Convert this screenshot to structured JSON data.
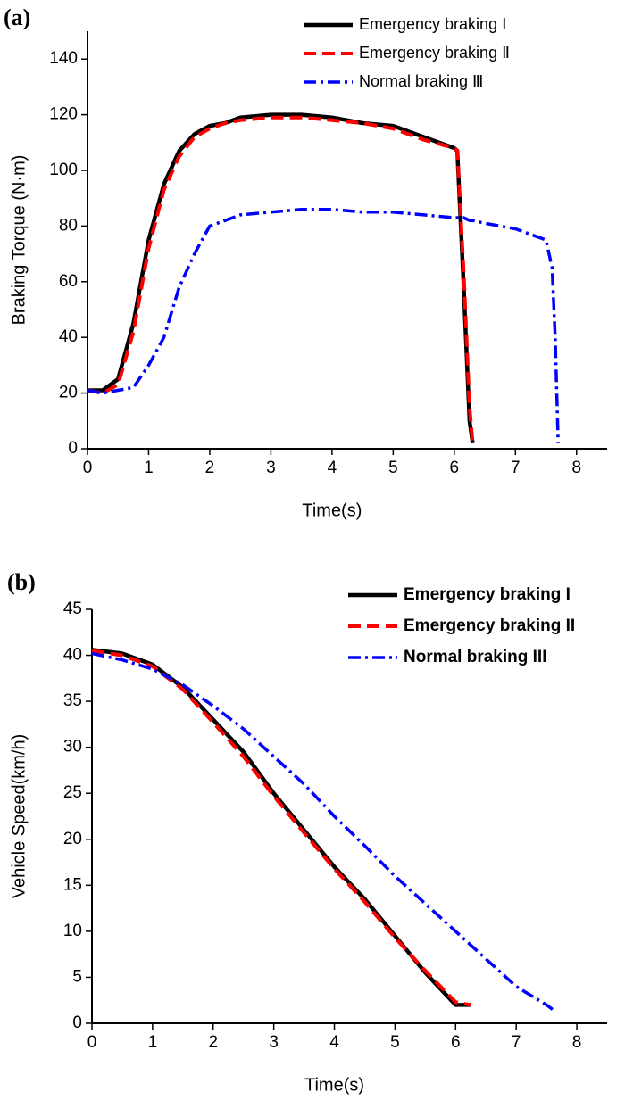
{
  "chart_data": [
    {
      "type": "line",
      "panel_label": "(a)",
      "x_label": "Time(s)",
      "y_label": "Braking Torque (N·m)",
      "xlim": [
        0,
        8.5
      ],
      "ylim": [
        0,
        150
      ],
      "xticks": [
        0,
        1,
        2,
        3,
        4,
        5,
        6,
        7,
        8
      ],
      "yticks": [
        0,
        20,
        40,
        60,
        80,
        100,
        120,
        140
      ],
      "legend": "upper-right",
      "legend_bold": false,
      "x": [
        0,
        0.25,
        0.5,
        0.75,
        1,
        1.25,
        1.5,
        1.75,
        2,
        2.25,
        2.5,
        3,
        3.5,
        4,
        4.5,
        5,
        5.5,
        6,
        6.05,
        6.15,
        6.25,
        6.3,
        6.5,
        7,
        7.5,
        7.6,
        7.65,
        7.7
      ],
      "series": [
        {
          "name": "Emergency braking Ⅰ",
          "color": "#000000",
          "linestyle": "solid",
          "values": [
            21,
            21,
            25,
            45,
            75,
            95,
            107,
            113,
            116,
            117,
            119,
            120,
            120,
            119,
            117,
            116,
            112,
            108,
            107,
            60,
            10,
            2,
            null,
            null,
            null,
            null,
            null,
            null
          ]
        },
        {
          "name": "Emergency braking Ⅱ",
          "color": "#ff0000",
          "linestyle": "dashed",
          "values": [
            21,
            20,
            23,
            42,
            72,
            93,
            105,
            112,
            115,
            117,
            118,
            119,
            119,
            118,
            117,
            115,
            111,
            108,
            107,
            65,
            15,
            2,
            null,
            null,
            null,
            null,
            null,
            null
          ]
        },
        {
          "name": "Normal braking Ⅲ",
          "color": "#0000ff",
          "linestyle": "dashdot",
          "values": [
            21,
            20,
            21,
            22,
            30,
            40,
            58,
            70,
            80,
            82,
            84,
            85,
            86,
            86,
            85,
            85,
            84,
            83,
            83,
            83,
            82,
            82,
            81,
            79,
            75,
            65,
            40,
            2
          ]
        }
      ]
    },
    {
      "type": "line",
      "panel_label": "(b)",
      "x_label": "Time(s)",
      "y_label": "Vehicle Speed(km/h)",
      "xlim": [
        0,
        8.5
      ],
      "ylim": [
        0,
        45
      ],
      "xticks": [
        0,
        1,
        2,
        3,
        4,
        5,
        6,
        7,
        8
      ],
      "yticks": [
        0,
        5,
        10,
        15,
        20,
        25,
        30,
        35,
        40,
        45
      ],
      "legend": "upper-right",
      "legend_bold": true,
      "x": [
        0,
        0.5,
        1,
        1.5,
        2,
        2.5,
        3,
        3.5,
        4,
        4.5,
        5,
        5.5,
        6,
        6.25,
        6.5,
        7,
        7.5,
        7.6
      ],
      "series": [
        {
          "name": "Emergency braking I",
          "color": "#000000",
          "linestyle": "solid",
          "values": [
            40.6,
            40.2,
            39,
            36.5,
            33,
            29.5,
            25,
            21,
            17,
            13.5,
            9.5,
            5.5,
            2,
            2,
            null,
            null,
            null,
            null
          ]
        },
        {
          "name": "Emergency braking II",
          "color": "#ff0000",
          "linestyle": "dashed",
          "values": [
            40.5,
            40,
            38.8,
            36.3,
            32.7,
            29,
            24.7,
            20.7,
            16.8,
            13.2,
            9.3,
            5.7,
            2.3,
            2,
            null,
            null,
            null,
            null
          ]
        },
        {
          "name": "Normal braking III",
          "color": "#0000ff",
          "linestyle": "dashdot",
          "values": [
            40.2,
            39.5,
            38.5,
            36.8,
            34.5,
            32,
            29,
            26,
            22.5,
            19.3,
            16,
            13,
            10,
            8.5,
            7,
            4,
            2,
            1.5
          ]
        }
      ]
    }
  ]
}
